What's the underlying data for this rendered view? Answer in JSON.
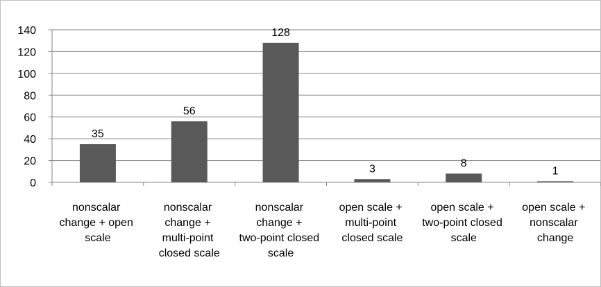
{
  "chart_data": {
    "type": "bar",
    "categories": [
      "nonscalar change + open scale",
      "nonscalar change + multi-point closed scale",
      "nonscalar change + two-point closed scale",
      "open scale + multi-point closed scale",
      "open scale + two-point closed scale",
      "open scale + nonscalar change"
    ],
    "values": [
      35,
      56,
      128,
      3,
      8,
      1
    ],
    "color": "#595959",
    "ylim": [
      0,
      140
    ],
    "yticks": [
      0,
      20,
      40,
      60,
      80,
      100,
      120,
      140
    ],
    "grid": true
  }
}
